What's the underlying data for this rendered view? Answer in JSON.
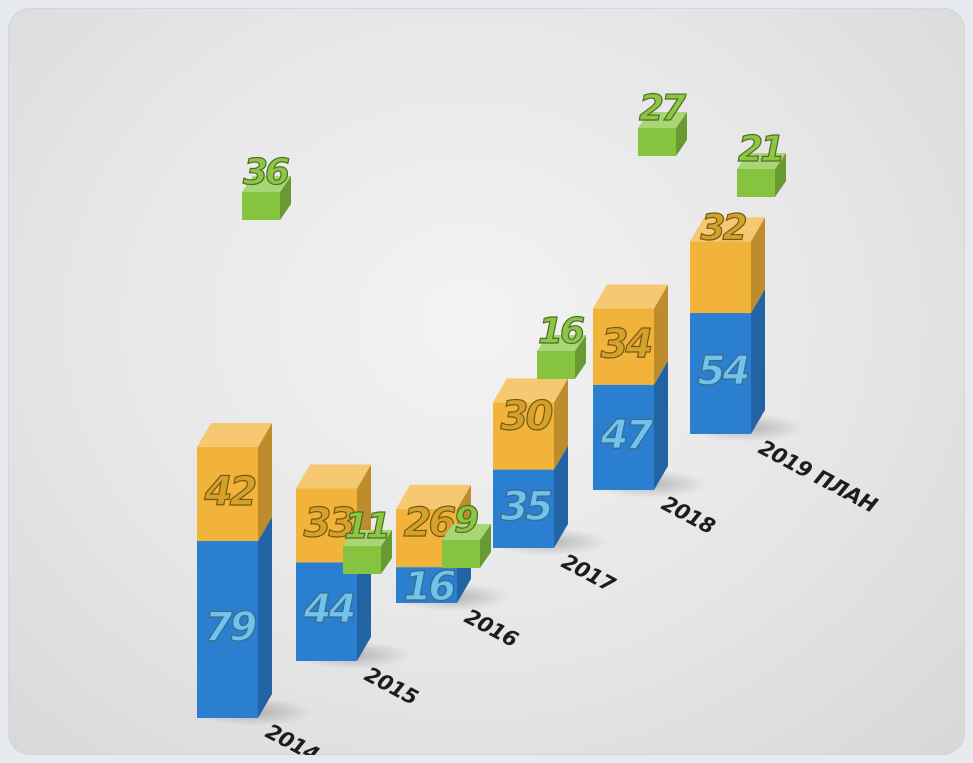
{
  "chart_data": {
    "type": "bar",
    "categories": [
      "2014",
      "2015",
      "2016",
      "2017",
      "2018",
      "2019 ПЛАН"
    ],
    "series": [
      {
        "values": [
          79,
          44,
          16,
          35,
          47,
          54
        ]
      },
      {
        "values": [
          42,
          33,
          26,
          30,
          34,
          32
        ]
      },
      {
        "values": [
          36,
          11,
          9,
          16,
          27,
          21
        ]
      }
    ],
    "colors": {
      "blue": "#2a7fd1",
      "orange": "#f1b33a",
      "green": "#86c43f"
    },
    "xlabel": "",
    "ylabel": ""
  }
}
